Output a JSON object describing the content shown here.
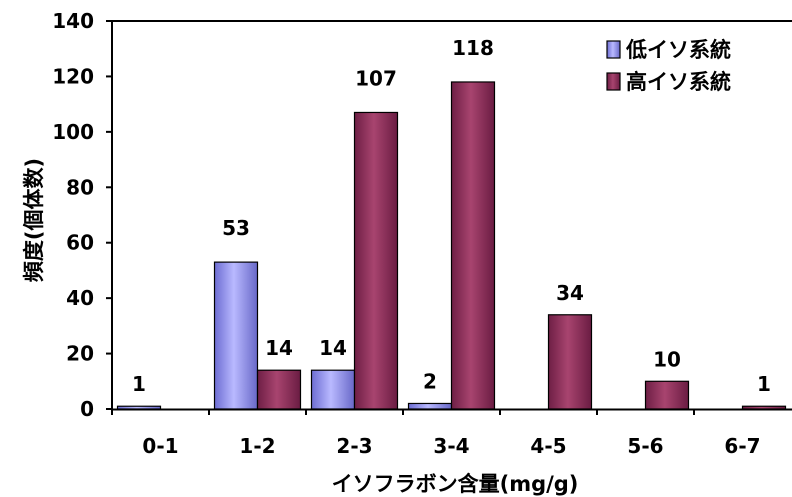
{
  "chart_data": {
    "type": "bar",
    "xlabel": "イソフラボン含量(mg/g)",
    "ylabel": "頻度(個体数)",
    "ylim": [
      0,
      140
    ],
    "yticks": [
      "0",
      "20",
      "40",
      "60",
      "80",
      "100",
      "120",
      "140"
    ],
    "categories": [
      "0-1",
      "1-2",
      "2-3",
      "3-4",
      "4-5",
      "5-6",
      "6-7"
    ],
    "series": [
      {
        "name": "低イソ系統",
        "color": "#9999ff",
        "values": [
          1,
          53,
          14,
          2,
          0,
          0,
          0
        ],
        "labels": [
          "1",
          "53",
          "14",
          "2",
          "",
          "",
          ""
        ]
      },
      {
        "name": "高イソ系統",
        "color": "#993366",
        "values": [
          0,
          14,
          107,
          118,
          34,
          10,
          1
        ],
        "labels": [
          "",
          "14",
          "107",
          "118",
          "34",
          "10",
          "1"
        ]
      }
    ],
    "legend_position": "top-right",
    "grid": false
  }
}
